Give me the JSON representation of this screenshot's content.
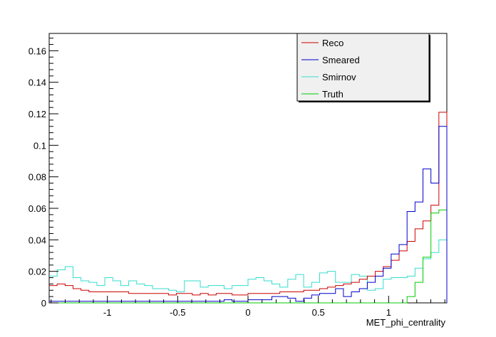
{
  "chart_data": {
    "type": "line",
    "xlabel": "MET_phi_centrality",
    "ylabel": "",
    "xlim": [
      -1.414,
      1.414
    ],
    "ylim": [
      0,
      0.171
    ],
    "xticks": [
      -1,
      -0.5,
      0,
      0.5,
      1
    ],
    "xtick_labels": [
      "-1",
      "-0.5",
      "0",
      "0.5",
      "1"
    ],
    "yticks": [
      0,
      0.02,
      0.04,
      0.06,
      0.08,
      0.1,
      0.12,
      0.14,
      0.16
    ],
    "ytick_labels": [
      "0",
      "0.02",
      "0.04",
      "0.06",
      "0.08",
      "0.1",
      "0.12",
      "0.14",
      "0.16"
    ],
    "legend_position": "top-right",
    "n_bins": 50,
    "series": [
      {
        "name": "Reco",
        "color": "#cc0000",
        "values": [
          0.011,
          0.012,
          0.011,
          0.009,
          0.008,
          0.007,
          0.007,
          0.007,
          0.007,
          0.007,
          0.006,
          0.006,
          0.006,
          0.006,
          0.006,
          0.005,
          0.006,
          0.006,
          0.005,
          0.006,
          0.005,
          0.006,
          0.006,
          0.005,
          0.005,
          0.006,
          0.006,
          0.006,
          0.006,
          0.007,
          0.007,
          0.007,
          0.008,
          0.008,
          0.009,
          0.01,
          0.011,
          0.012,
          0.013,
          0.015,
          0.017,
          0.02,
          0.023,
          0.027,
          0.033,
          0.039,
          0.047,
          0.052,
          0.062,
          0.121
        ]
      },
      {
        "name": "Smeared",
        "color": "#0000cc",
        "values": [
          0.001,
          0.001,
          0.001,
          0.001,
          0.001,
          0.001,
          0.001,
          0.001,
          0.001,
          0.001,
          0.001,
          0.001,
          0.001,
          0.001,
          0.001,
          0.001,
          0.001,
          0.001,
          0.001,
          0.001,
          0.001,
          0.001,
          0.002,
          0.001,
          0.001,
          0.002,
          0.002,
          0.002,
          0.004,
          0.004,
          0.003,
          0.001,
          0.003,
          0.005,
          0.006,
          0.006,
          0.009,
          0.004,
          0.007,
          0.009,
          0.013,
          0.017,
          0.022,
          0.031,
          0.037,
          0.058,
          0.064,
          0.085,
          0.076,
          0.112
        ]
      },
      {
        "name": "Smirnov",
        "color": "#33ddcc",
        "values": [
          0.017,
          0.021,
          0.023,
          0.016,
          0.014,
          0.013,
          0.011,
          0.016,
          0.014,
          0.011,
          0.014,
          0.012,
          0.011,
          0.009,
          0.009,
          0.008,
          0.007,
          0.014,
          0.014,
          0.01,
          0.011,
          0.011,
          0.009,
          0.011,
          0.011,
          0.015,
          0.016,
          0.014,
          0.012,
          0.01,
          0.015,
          0.018,
          0.01,
          0.013,
          0.019,
          0.02,
          0.013,
          0.013,
          0.018,
          0.017,
          0.008,
          0.009,
          0.015,
          0.016,
          0.016,
          0.017,
          0.022,
          0.028,
          0.032,
          0.04
        ]
      },
      {
        "name": "Truth",
        "color": "#00cc00",
        "values": [
          0,
          0,
          0,
          0,
          0,
          0,
          0,
          0,
          0,
          0,
          0,
          0,
          0,
          0,
          0,
          0,
          0,
          0,
          0,
          0,
          0,
          0,
          0,
          0,
          0,
          0,
          0,
          0,
          0,
          0,
          0,
          0,
          0,
          0,
          0,
          0,
          0,
          0,
          0,
          0,
          0,
          0,
          0,
          0,
          0,
          0.004,
          0.013,
          0.029,
          0.057,
          0.059
        ]
      }
    ]
  }
}
